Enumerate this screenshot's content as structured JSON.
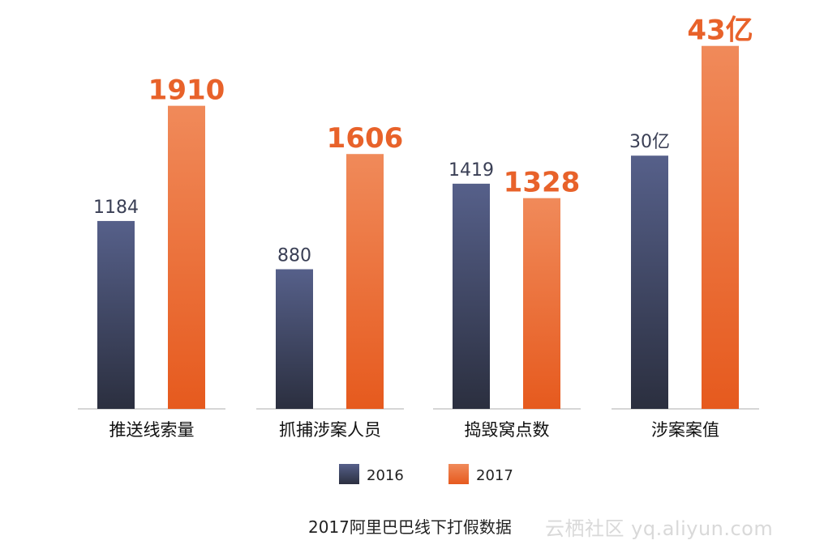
{
  "chart_data": {
    "type": "bar",
    "title": "2017阿里巴巴线下打假数据",
    "xlabel": "",
    "ylabel": "",
    "grid": false,
    "legend_position": "bottom-center",
    "categories": [
      "推送线索量",
      "抓捕涉案人员",
      "捣毁窝点数",
      "涉案案值"
    ],
    "series": [
      {
        "name": "2016",
        "color": "#3a4260",
        "values": [
          1184,
          880,
          1419,
          30
        ],
        "labels": [
          "1184",
          "880",
          "1419",
          "30亿"
        ]
      },
      {
        "name": "2017",
        "color": "#e8622a",
        "values": [
          1910,
          1606,
          1328,
          43
        ],
        "labels": [
          "1910",
          "1606",
          "1328",
          "43亿"
        ]
      }
    ],
    "group_ylim": [
      [
        0,
        2500
      ],
      [
        0,
        2500
      ],
      [
        0,
        2500
      ],
      [
        0,
        47
      ]
    ]
  },
  "legend": {
    "items": [
      {
        "label": "2016",
        "color": "#3a4260"
      },
      {
        "label": "2017",
        "color": "#e8622a"
      }
    ]
  },
  "footer": {
    "title": "2017阿里巴巴线下打假数据",
    "watermark": "云栖社区 yq.aliyun.com"
  }
}
